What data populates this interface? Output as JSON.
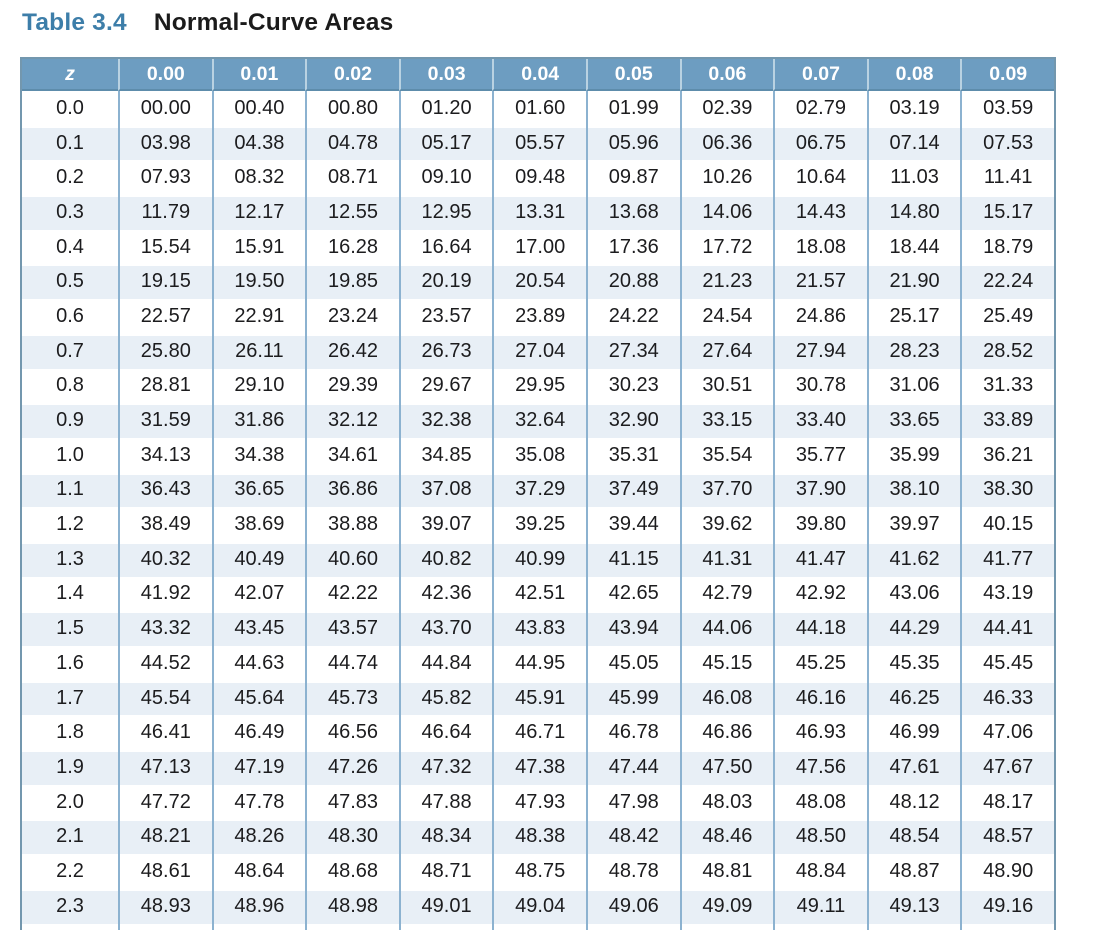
{
  "title": {
    "label": "Table 3.4",
    "text": "Normal-Curve Areas"
  },
  "table": {
    "columns": [
      "z",
      "0.00",
      "0.01",
      "0.02",
      "0.03",
      "0.04",
      "0.05",
      "0.06",
      "0.07",
      "0.08",
      "0.09"
    ],
    "rows": [
      {
        "z": "0.0",
        "values": [
          "00.00",
          "00.40",
          "00.80",
          "01.20",
          "01.60",
          "01.99",
          "02.39",
          "02.79",
          "03.19",
          "03.59"
        ]
      },
      {
        "z": "0.1",
        "values": [
          "03.98",
          "04.38",
          "04.78",
          "05.17",
          "05.57",
          "05.96",
          "06.36",
          "06.75",
          "07.14",
          "07.53"
        ]
      },
      {
        "z": "0.2",
        "values": [
          "07.93",
          "08.32",
          "08.71",
          "09.10",
          "09.48",
          "09.87",
          "10.26",
          "10.64",
          "11.03",
          "11.41"
        ]
      },
      {
        "z": "0.3",
        "values": [
          "11.79",
          "12.17",
          "12.55",
          "12.95",
          "13.31",
          "13.68",
          "14.06",
          "14.43",
          "14.80",
          "15.17"
        ]
      },
      {
        "z": "0.4",
        "values": [
          "15.54",
          "15.91",
          "16.28",
          "16.64",
          "17.00",
          "17.36",
          "17.72",
          "18.08",
          "18.44",
          "18.79"
        ]
      },
      {
        "z": "0.5",
        "values": [
          "19.15",
          "19.50",
          "19.85",
          "20.19",
          "20.54",
          "20.88",
          "21.23",
          "21.57",
          "21.90",
          "22.24"
        ]
      },
      {
        "z": "0.6",
        "values": [
          "22.57",
          "22.91",
          "23.24",
          "23.57",
          "23.89",
          "24.22",
          "24.54",
          "24.86",
          "25.17",
          "25.49"
        ]
      },
      {
        "z": "0.7",
        "values": [
          "25.80",
          "26.11",
          "26.42",
          "26.73",
          "27.04",
          "27.34",
          "27.64",
          "27.94",
          "28.23",
          "28.52"
        ]
      },
      {
        "z": "0.8",
        "values": [
          "28.81",
          "29.10",
          "29.39",
          "29.67",
          "29.95",
          "30.23",
          "30.51",
          "30.78",
          "31.06",
          "31.33"
        ]
      },
      {
        "z": "0.9",
        "values": [
          "31.59",
          "31.86",
          "32.12",
          "32.38",
          "32.64",
          "32.90",
          "33.15",
          "33.40",
          "33.65",
          "33.89"
        ]
      },
      {
        "z": "1.0",
        "values": [
          "34.13",
          "34.38",
          "34.61",
          "34.85",
          "35.08",
          "35.31",
          "35.54",
          "35.77",
          "35.99",
          "36.21"
        ]
      },
      {
        "z": "1.1",
        "values": [
          "36.43",
          "36.65",
          "36.86",
          "37.08",
          "37.29",
          "37.49",
          "37.70",
          "37.90",
          "38.10",
          "38.30"
        ]
      },
      {
        "z": "1.2",
        "values": [
          "38.49",
          "38.69",
          "38.88",
          "39.07",
          "39.25",
          "39.44",
          "39.62",
          "39.80",
          "39.97",
          "40.15"
        ]
      },
      {
        "z": "1.3",
        "values": [
          "40.32",
          "40.49",
          "40.60",
          "40.82",
          "40.99",
          "41.15",
          "41.31",
          "41.47",
          "41.62",
          "41.77"
        ]
      },
      {
        "z": "1.4",
        "values": [
          "41.92",
          "42.07",
          "42.22",
          "42.36",
          "42.51",
          "42.65",
          "42.79",
          "42.92",
          "43.06",
          "43.19"
        ]
      },
      {
        "z": "1.5",
        "values": [
          "43.32",
          "43.45",
          "43.57",
          "43.70",
          "43.83",
          "43.94",
          "44.06",
          "44.18",
          "44.29",
          "44.41"
        ]
      },
      {
        "z": "1.6",
        "values": [
          "44.52",
          "44.63",
          "44.74",
          "44.84",
          "44.95",
          "45.05",
          "45.15",
          "45.25",
          "45.35",
          "45.45"
        ]
      },
      {
        "z": "1.7",
        "values": [
          "45.54",
          "45.64",
          "45.73",
          "45.82",
          "45.91",
          "45.99",
          "46.08",
          "46.16",
          "46.25",
          "46.33"
        ]
      },
      {
        "z": "1.8",
        "values": [
          "46.41",
          "46.49",
          "46.56",
          "46.64",
          "46.71",
          "46.78",
          "46.86",
          "46.93",
          "46.99",
          "47.06"
        ]
      },
      {
        "z": "1.9",
        "values": [
          "47.13",
          "47.19",
          "47.26",
          "47.32",
          "47.38",
          "47.44",
          "47.50",
          "47.56",
          "47.61",
          "47.67"
        ]
      },
      {
        "z": "2.0",
        "values": [
          "47.72",
          "47.78",
          "47.83",
          "47.88",
          "47.93",
          "47.98",
          "48.03",
          "48.08",
          "48.12",
          "48.17"
        ]
      },
      {
        "z": "2.1",
        "values": [
          "48.21",
          "48.26",
          "48.30",
          "48.34",
          "48.38",
          "48.42",
          "48.46",
          "48.50",
          "48.54",
          "48.57"
        ]
      },
      {
        "z": "2.2",
        "values": [
          "48.61",
          "48.64",
          "48.68",
          "48.71",
          "48.75",
          "48.78",
          "48.81",
          "48.84",
          "48.87",
          "48.90"
        ]
      },
      {
        "z": "2.3",
        "values": [
          "48.93",
          "48.96",
          "48.98",
          "49.01",
          "49.04",
          "49.06",
          "49.09",
          "49.11",
          "49.13",
          "49.16"
        ]
      }
    ]
  },
  "colors": {
    "title_accent": "#3d7ea9",
    "header_bg": "#6d9dc1",
    "header_text": "#ffffff",
    "row_stripe": "#e8eff6",
    "grid_line": "#8cb2d0",
    "outer_border": "#7397ae",
    "body_text": "#1c1c1e"
  }
}
